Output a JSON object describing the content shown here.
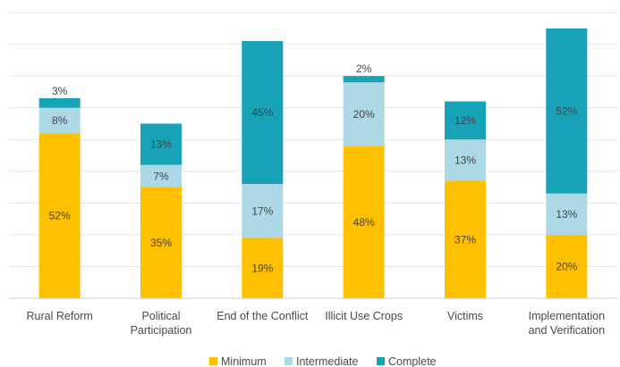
{
  "chart_data": {
    "type": "bar",
    "stacked": true,
    "categories": [
      [
        "Rural Reform"
      ],
      [
        "Political",
        "Participation"
      ],
      [
        "End of the Conflict"
      ],
      [
        "Illicit Use Crops"
      ],
      [
        "Victims"
      ],
      [
        "Implementation",
        "and Verification"
      ]
    ],
    "series": [
      {
        "name": "Minimum",
        "color": "#FFC000",
        "values": [
          52,
          35,
          19,
          48,
          37,
          20
        ]
      },
      {
        "name": "Intermediate",
        "color": "#ADD8E6",
        "values": [
          8,
          7,
          17,
          20,
          13,
          13
        ]
      },
      {
        "name": "Complete",
        "color": "#17A2B8",
        "values": [
          3,
          13,
          45,
          2,
          12,
          52
        ]
      }
    ],
    "ylim": [
      0,
      90
    ],
    "grid": true,
    "legend_position": "bottom",
    "value_suffix": "%"
  }
}
